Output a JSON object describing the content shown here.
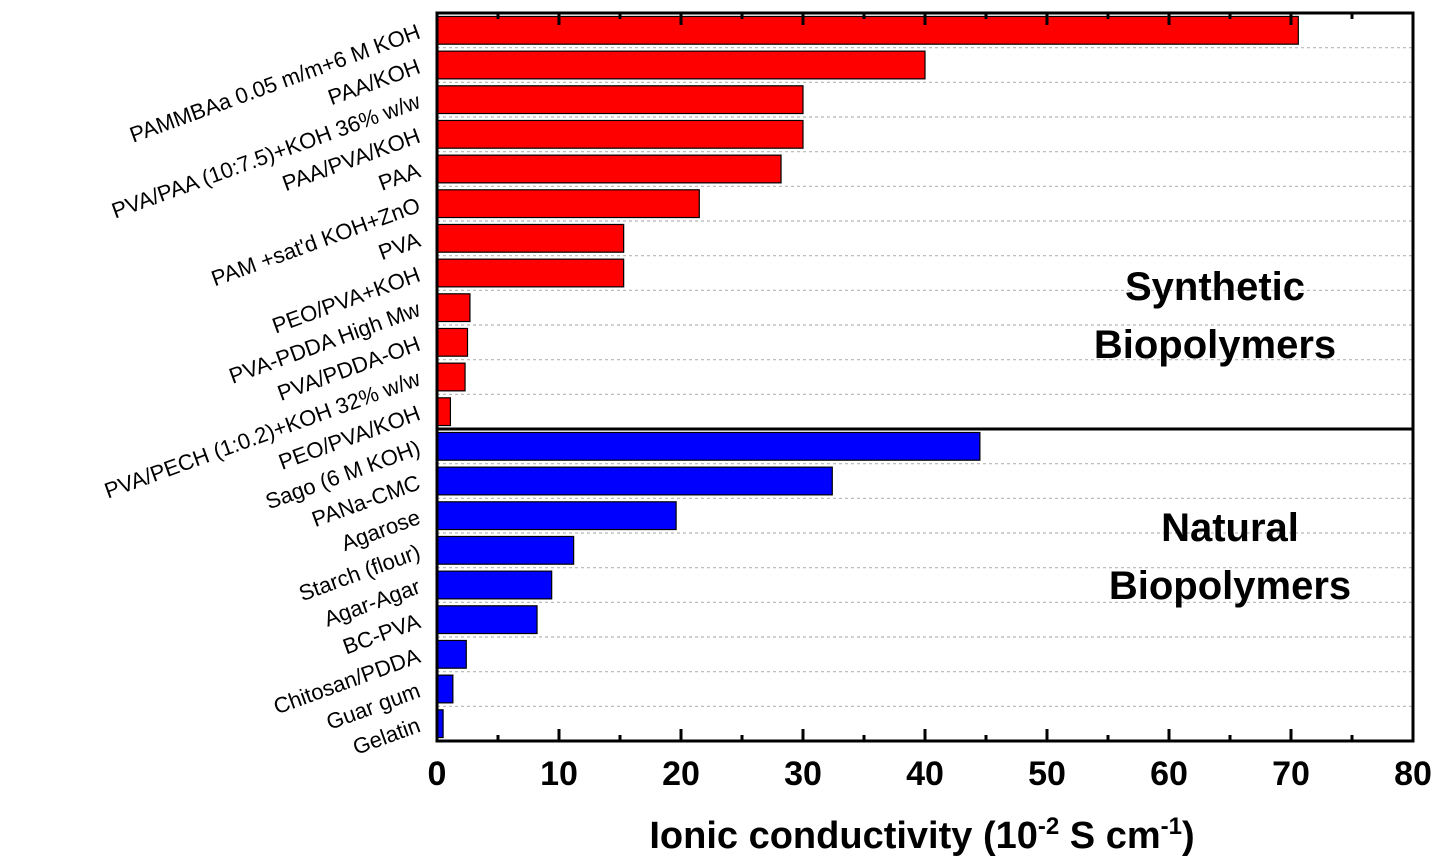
{
  "chart_data": {
    "type": "bar",
    "orientation": "horizontal",
    "title": "",
    "xlabel": "Ionic conductivity (10",
    "xlabel_exp1": "-2",
    "xlabel_mid": " S cm",
    "xlabel_exp2": "-1",
    "xlabel_end": ")",
    "ylabel": "",
    "xlim": [
      0,
      80
    ],
    "xticks": [
      "0",
      "10",
      "20",
      "30",
      "40",
      "50",
      "60",
      "70",
      "80"
    ],
    "grid": true,
    "series": [
      {
        "group_label_line1": "Synthetic",
        "group_label_line2": "Biopolymers",
        "color": "#ff0000",
        "categories": [
          "PAMMBAa 0.05 m/m+6 M KOH",
          "PAA/KOH",
          "PVA/PAA (10:7.5)+KOH 36% w/w",
          "PAA/PVA/KOH",
          "PAA",
          "PAM +sat'd KOH+ZnO",
          "PVA",
          "PEO/PVA+KOH",
          "PVA-PDDA High Mw",
          "PVA/PDDA-OH",
          "PVA/PECH (1:0.2)+KOH 32% w/w",
          "PEO/PVA/KOH"
        ],
        "values": [
          70.6,
          40,
          30,
          30,
          28.2,
          21.5,
          15.3,
          15.3,
          2.7,
          2.5,
          2.3,
          1.1
        ]
      },
      {
        "group_label_line1": "Natural",
        "group_label_line2": "Biopolymers",
        "color": "#0000ff",
        "categories": [
          "Sago (6 M KOH)",
          "PANa-CMC",
          "Agarose",
          "Starch (flour)",
          "Agar-Agar",
          "BC-PVA",
          "Chitosan/PDDA",
          "Guar gum",
          "Gelatin"
        ],
        "values": [
          44.5,
          32.4,
          19.6,
          11.2,
          9.4,
          8.2,
          2.4,
          1.3,
          0.5
        ]
      }
    ]
  }
}
